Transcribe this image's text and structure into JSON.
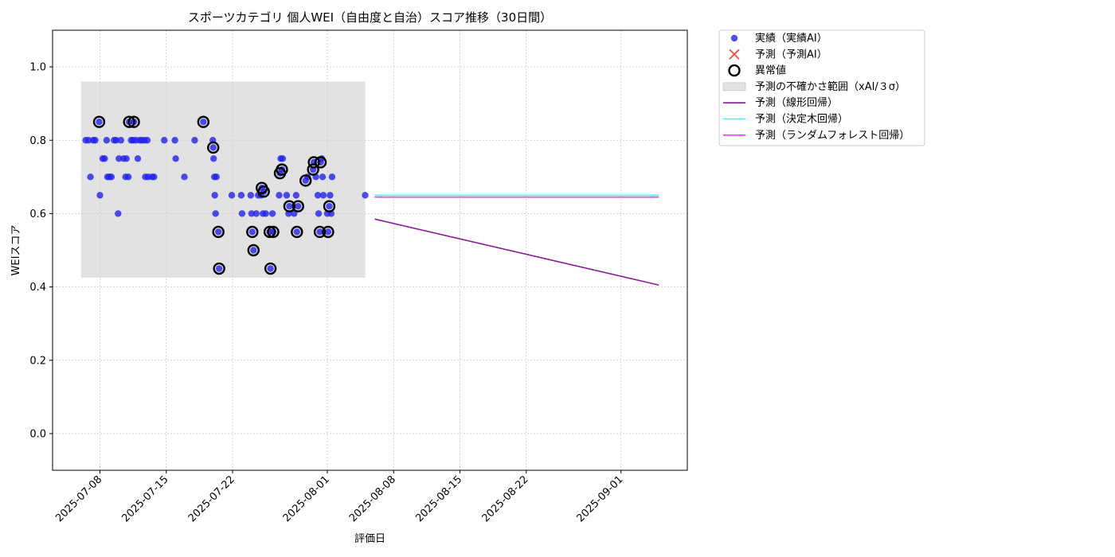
{
  "chart_data": {
    "type": "scatter",
    "title": "スポーツカテゴリ 個人WEI（自由度と自治）スコア推移（30日間）",
    "xlabel": "評価日",
    "ylabel": "WEIスコア",
    "xlim": [
      "2025-07-03",
      "2025-09-08"
    ],
    "ylim": [
      -0.1,
      1.1
    ],
    "yticks": [
      0.0,
      0.2,
      0.4,
      0.6,
      0.8,
      1.0
    ],
    "xticks": [
      "2025-07-08",
      "2025-07-15",
      "2025-07-22",
      "2025-08-01",
      "2025-08-08",
      "2025-08-15",
      "2025-08-22",
      "2025-09-01"
    ],
    "grid": true,
    "legend_position": "outside-top-right",
    "colors": {
      "actual": "#2222ee",
      "predicted": "#ff4444",
      "anomaly": "#000000",
      "band": "#d3d3d3",
      "linear": "#8b1a9a",
      "tree": "#33ffff",
      "forest": "#ff33ff"
    },
    "legend": [
      {
        "key": "actual",
        "label": "実績（実績AI）"
      },
      {
        "key": "predicted",
        "label": "予測（予測AI）"
      },
      {
        "key": "anomaly",
        "label": "異常値"
      },
      {
        "key": "band",
        "label": "予測の不確かさ範囲（xAI/３σ）"
      },
      {
        "key": "linear",
        "label": "予測（線形回帰）"
      },
      {
        "key": "tree",
        "label": "予測（決定木回帰）"
      },
      {
        "key": "forest",
        "label": "予測（ランダムフォレスト回帰）"
      }
    ],
    "uncertainty_band": {
      "x_start": "2025-07-06",
      "x_end": "2025-08-05",
      "y_low": 0.425,
      "y_high": 0.96
    },
    "series": [
      {
        "key": "actual",
        "name": "実績（実績AI）",
        "points": [
          [
            "2025-07-06 12:00",
            0.8
          ],
          [
            "2025-07-06 19:00",
            0.8
          ],
          [
            "2025-07-07 00:00",
            0.7
          ],
          [
            "2025-07-07 07:00",
            0.8
          ],
          [
            "2025-07-07 12:00",
            0.8
          ],
          [
            "2025-07-07 22:00",
            0.85
          ],
          [
            "2025-07-08 00:00",
            0.65
          ],
          [
            "2025-07-08 07:00",
            0.75
          ],
          [
            "2025-07-08 12:00",
            0.75
          ],
          [
            "2025-07-08 17:00",
            0.8
          ],
          [
            "2025-07-08 19:00",
            0.7
          ],
          [
            "2025-07-09 00:00",
            0.7
          ],
          [
            "2025-07-09 05:00",
            0.7
          ],
          [
            "2025-07-09 12:00",
            0.8
          ],
          [
            "2025-07-09 17:00",
            0.8
          ],
          [
            "2025-07-09 22:00",
            0.6
          ],
          [
            "2025-07-10 00:00",
            0.75
          ],
          [
            "2025-07-10 05:00",
            0.8
          ],
          [
            "2025-07-10 12:00",
            0.75
          ],
          [
            "2025-07-10 17:00",
            0.7
          ],
          [
            "2025-07-10 19:00",
            0.75
          ],
          [
            "2025-07-11 00:00",
            0.7
          ],
          [
            "2025-07-11 02:00",
            0.85
          ],
          [
            "2025-07-11 07:00",
            0.8
          ],
          [
            "2025-07-11 12:00",
            0.8
          ],
          [
            "2025-07-11 14:00",
            0.85
          ],
          [
            "2025-07-11 19:00",
            0.8
          ],
          [
            "2025-07-12 00:00",
            0.75
          ],
          [
            "2025-07-12 05:00",
            0.8
          ],
          [
            "2025-07-12 10:00",
            0.8
          ],
          [
            "2025-07-12 17:00",
            0.8
          ],
          [
            "2025-07-12 19:00",
            0.7
          ],
          [
            "2025-07-13 00:00",
            0.8
          ],
          [
            "2025-07-13 02:00",
            0.7
          ],
          [
            "2025-07-13 12:00",
            0.7
          ],
          [
            "2025-07-13 17:00",
            0.7
          ],
          [
            "2025-07-14 19:00",
            0.8
          ],
          [
            "2025-07-15 22:00",
            0.8
          ],
          [
            "2025-07-16 00:00",
            0.75
          ],
          [
            "2025-07-16 22:00",
            0.7
          ],
          [
            "2025-07-18 00:00",
            0.8
          ],
          [
            "2025-07-18 22:00",
            0.85
          ],
          [
            "2025-07-19 22:00",
            0.8
          ],
          [
            "2025-07-19 23:00",
            0.78
          ],
          [
            "2025-07-20 00:00",
            0.75
          ],
          [
            "2025-07-20 02:00",
            0.7
          ],
          [
            "2025-07-20 03:00",
            0.65
          ],
          [
            "2025-07-20 05:00",
            0.6
          ],
          [
            "2025-07-20 07:00",
            0.7
          ],
          [
            "2025-07-20 12:00",
            0.55
          ],
          [
            "2025-07-20 14:00",
            0.45
          ],
          [
            "2025-07-21 22:00",
            0.65
          ],
          [
            "2025-07-22 22:00",
            0.65
          ],
          [
            "2025-07-23 00:00",
            0.6
          ],
          [
            "2025-07-23 22:00",
            0.65
          ],
          [
            "2025-07-24 00:00",
            0.6
          ],
          [
            "2025-07-24 02:00",
            0.55
          ],
          [
            "2025-07-24 05:00",
            0.5
          ],
          [
            "2025-07-24 12:00",
            0.6
          ],
          [
            "2025-07-24 17:00",
            0.65
          ],
          [
            "2025-07-25 00:00",
            0.65
          ],
          [
            "2025-07-25 02:00",
            0.67
          ],
          [
            "2025-07-25 05:00",
            0.6
          ],
          [
            "2025-07-25 07:00",
            0.66
          ],
          [
            "2025-07-25 12:00",
            0.6
          ],
          [
            "2025-07-25 22:00",
            0.55
          ],
          [
            "2025-07-26 00:00",
            0.45
          ],
          [
            "2025-07-26 05:00",
            0.6
          ],
          [
            "2025-07-26 07:00",
            0.55
          ],
          [
            "2025-07-26 22:00",
            0.65
          ],
          [
            "2025-07-27 00:00",
            0.71
          ],
          [
            "2025-07-27 02:00",
            0.75
          ],
          [
            "2025-07-27 05:00",
            0.72
          ],
          [
            "2025-07-27 07:00",
            0.75
          ],
          [
            "2025-07-27 17:00",
            0.65
          ],
          [
            "2025-07-27 22:00",
            0.6
          ],
          [
            "2025-07-28 00:00",
            0.62
          ],
          [
            "2025-07-28 12:00",
            0.6
          ],
          [
            "2025-07-28 17:00",
            0.65
          ],
          [
            "2025-07-28 19:00",
            0.55
          ],
          [
            "2025-07-28 22:00",
            0.62
          ],
          [
            "2025-07-29 17:00",
            0.69
          ],
          [
            "2025-07-29 22:00",
            0.7
          ],
          [
            "2025-07-30 12:00",
            0.72
          ],
          [
            "2025-07-30 14:00",
            0.74
          ],
          [
            "2025-07-30 19:00",
            0.7
          ],
          [
            "2025-07-31 00:00",
            0.65
          ],
          [
            "2025-07-31 02:00",
            0.6
          ],
          [
            "2025-07-31 05:00",
            0.55
          ],
          [
            "2025-07-31 07:00",
            0.74
          ],
          [
            "2025-07-31 10:00",
            0.75
          ],
          [
            "2025-07-31 12:00",
            0.7
          ],
          [
            "2025-07-31 14:00",
            0.65
          ],
          [
            "2025-08-01 00:00",
            0.6
          ],
          [
            "2025-08-01 02:00",
            0.55
          ],
          [
            "2025-08-01 05:00",
            0.62
          ],
          [
            "2025-08-01 07:00",
            0.65
          ],
          [
            "2025-08-01 10:00",
            0.6
          ],
          [
            "2025-08-01 12:00",
            0.7
          ],
          [
            "2025-08-05 00:00",
            0.65
          ]
        ]
      },
      {
        "key": "anomaly",
        "name": "異常値",
        "points": [
          [
            "2025-07-07 22:00",
            0.85
          ],
          [
            "2025-07-11 02:00",
            0.85
          ],
          [
            "2025-07-11 14:00",
            0.85
          ],
          [
            "2025-07-18 22:00",
            0.85
          ],
          [
            "2025-07-19 23:00",
            0.78
          ],
          [
            "2025-07-20 12:00",
            0.55
          ],
          [
            "2025-07-20 14:00",
            0.45
          ],
          [
            "2025-07-24 02:00",
            0.55
          ],
          [
            "2025-07-24 05:00",
            0.5
          ],
          [
            "2025-07-25 02:00",
            0.67
          ],
          [
            "2025-07-25 07:00",
            0.66
          ],
          [
            "2025-07-25 22:00",
            0.55
          ],
          [
            "2025-07-26 00:00",
            0.45
          ],
          [
            "2025-07-26 07:00",
            0.55
          ],
          [
            "2025-07-27 00:00",
            0.71
          ],
          [
            "2025-07-27 05:00",
            0.72
          ],
          [
            "2025-07-28 00:00",
            0.62
          ],
          [
            "2025-07-28 19:00",
            0.55
          ],
          [
            "2025-07-28 22:00",
            0.62
          ],
          [
            "2025-07-29 17:00",
            0.69
          ],
          [
            "2025-07-30 12:00",
            0.72
          ],
          [
            "2025-07-30 14:00",
            0.74
          ],
          [
            "2025-07-31 05:00",
            0.55
          ],
          [
            "2025-07-31 07:00",
            0.74
          ],
          [
            "2025-08-01 02:00",
            0.55
          ],
          [
            "2025-08-01 05:00",
            0.62
          ]
        ]
      },
      {
        "key": "linear",
        "name": "予測（線形回帰）",
        "points": [
          [
            "2025-08-06 00:00",
            0.585
          ],
          [
            "2025-09-05 00:00",
            0.405
          ]
        ]
      },
      {
        "key": "tree",
        "name": "予測（決定木回帰）",
        "points": [
          [
            "2025-08-06 00:00",
            0.65
          ],
          [
            "2025-09-05 00:00",
            0.65
          ]
        ]
      },
      {
        "key": "forest",
        "name": "予測（ランダムフォレスト回帰）",
        "points": [
          [
            "2025-08-06 00:00",
            0.645
          ],
          [
            "2025-09-05 00:00",
            0.645
          ]
        ]
      }
    ]
  }
}
